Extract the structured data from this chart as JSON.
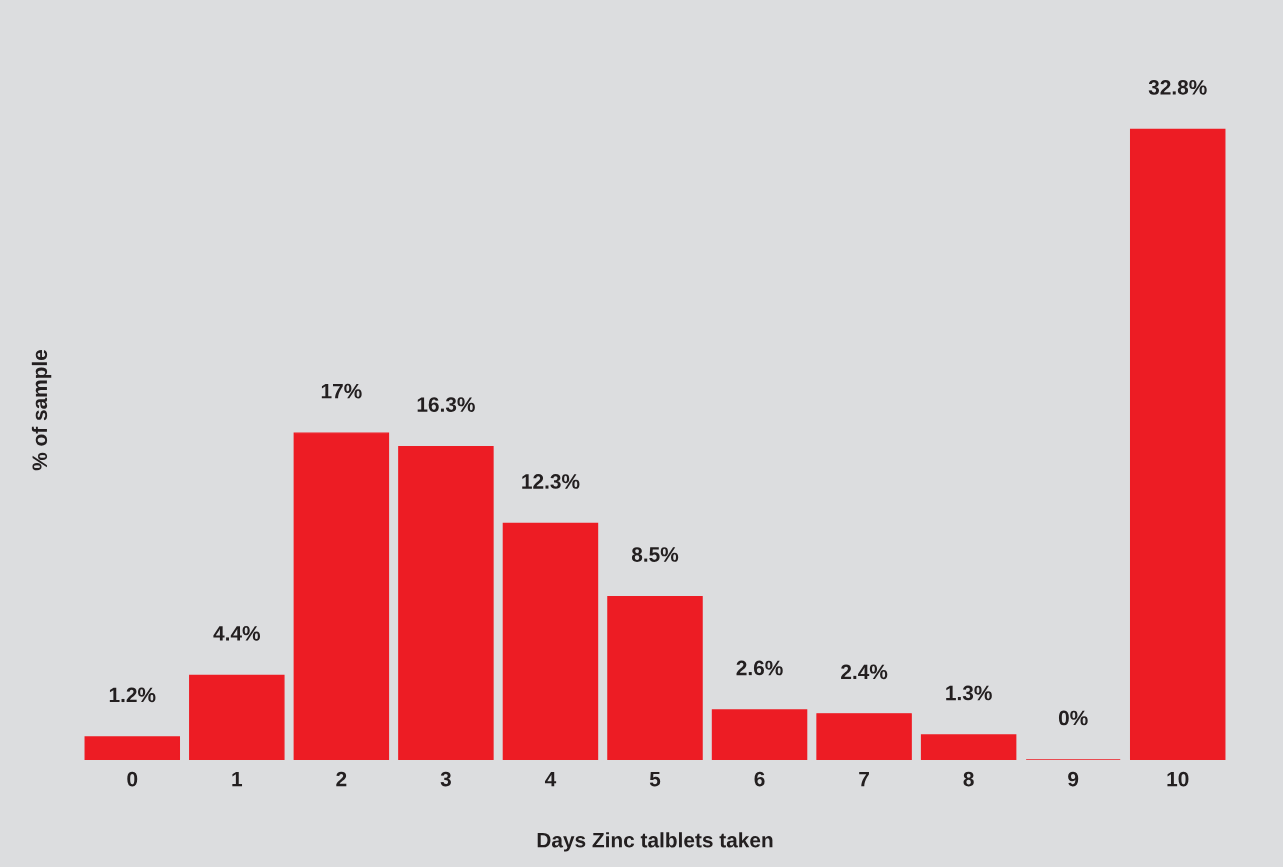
{
  "chart_data": {
    "type": "bar",
    "xlabel": "Days Zinc talblets taken",
    "ylabel": "% of sample",
    "categories": [
      "0",
      "1",
      "2",
      "3",
      "4",
      "5",
      "6",
      "7",
      "8",
      "9",
      "10"
    ],
    "values": [
      1.2,
      4.4,
      17,
      16.3,
      12.3,
      8.5,
      2.6,
      2.4,
      1.3,
      0,
      32.8
    ],
    "value_labels": [
      "1.2%",
      "4.4%",
      "17%",
      "16.3%",
      "12.3%",
      "8.5%",
      "2.6%",
      "2.4%",
      "1.3%",
      "0%",
      "32.8%"
    ],
    "color": "#ed1c24",
    "grid": false,
    "legend": false
  }
}
